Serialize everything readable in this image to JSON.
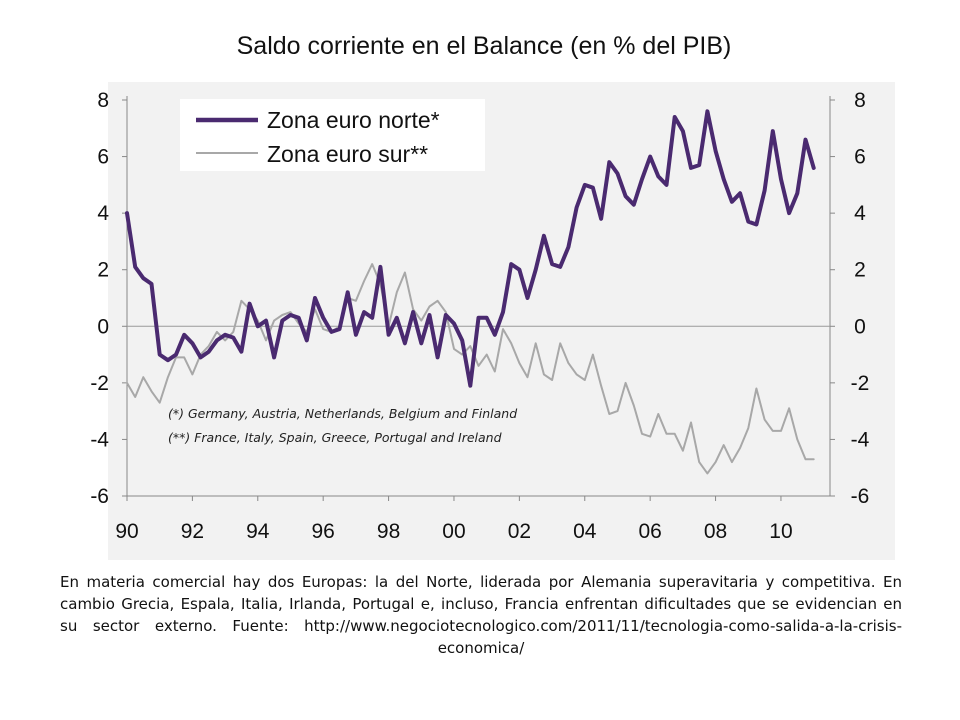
{
  "chart_data": {
    "type": "line",
    "title": "Saldo corriente en el Balance (en % del PIB)",
    "xlim": [
      1990,
      2011.5
    ],
    "ylim": [
      -6,
      8
    ],
    "x_tick_labels": [
      "90",
      "92",
      "94",
      "96",
      "98",
      "00",
      "02",
      "04",
      "06",
      "08",
      "10"
    ],
    "x_ticks": [
      1990,
      1992,
      1994,
      1996,
      1998,
      2000,
      2002,
      2004,
      2006,
      2008,
      2010
    ],
    "y_ticks": [
      8,
      6,
      4,
      2,
      0,
      -2,
      -4,
      -6
    ],
    "y_tick_labels": [
      "8",
      "6",
      "4",
      "2",
      "0",
      "-2",
      "-4",
      "-6"
    ],
    "legend_position": "top-left",
    "colors": {
      "north": "#4a2a70",
      "south": "#a8a8a8",
      "zero_line": "#999999",
      "axis": "#888888"
    },
    "series": [
      {
        "name": "Zona euro norte*",
        "key": "north",
        "x": [
          1990.0,
          1990.25,
          1990.5,
          1990.75,
          1991.0,
          1991.25,
          1991.5,
          1991.75,
          1992.0,
          1992.25,
          1992.5,
          1992.75,
          1993.0,
          1993.25,
          1993.5,
          1993.75,
          1994.0,
          1994.25,
          1994.5,
          1994.75,
          1995.0,
          1995.25,
          1995.5,
          1995.75,
          1996.0,
          1996.25,
          1996.5,
          1996.75,
          1997.0,
          1997.25,
          1997.5,
          1997.75,
          1998.0,
          1998.25,
          1998.5,
          1998.75,
          1999.0,
          1999.25,
          1999.5,
          1999.75,
          2000.0,
          2000.25,
          2000.5,
          2000.75,
          2001.0,
          2001.25,
          2001.5,
          2001.75,
          2002.0,
          2002.25,
          2002.5,
          2002.75,
          2003.0,
          2003.25,
          2003.5,
          2003.75,
          2004.0,
          2004.25,
          2004.5,
          2004.75,
          2005.0,
          2005.25,
          2005.5,
          2005.75,
          2006.0,
          2006.25,
          2006.5,
          2006.75,
          2007.0,
          2007.25,
          2007.5,
          2007.75,
          2008.0,
          2008.25,
          2008.5,
          2008.75,
          2009.0,
          2009.25,
          2009.5,
          2009.75,
          2010.0,
          2010.25,
          2010.5,
          2010.75,
          2011.0
        ],
        "y": [
          4.0,
          2.1,
          1.7,
          1.5,
          -1.0,
          -1.2,
          -1.0,
          -0.3,
          -0.6,
          -1.1,
          -0.9,
          -0.5,
          -0.3,
          -0.4,
          -0.9,
          0.8,
          0.0,
          0.2,
          -1.1,
          0.2,
          0.4,
          0.3,
          -0.5,
          1.0,
          0.3,
          -0.2,
          -0.1,
          1.2,
          -0.3,
          0.5,
          0.3,
          2.1,
          -0.3,
          0.3,
          -0.6,
          0.5,
          -0.6,
          0.4,
          -1.1,
          0.4,
          0.1,
          -0.5,
          -2.1,
          0.3,
          0.3,
          -0.3,
          0.5,
          2.2,
          2.0,
          1.0,
          2.0,
          3.2,
          2.2,
          2.1,
          2.8,
          4.2,
          5.0,
          4.9,
          3.8,
          5.8,
          5.4,
          4.6,
          4.3,
          5.2,
          6.0,
          5.3,
          5.0,
          7.4,
          6.9,
          5.6,
          5.7,
          7.6,
          6.2,
          5.2,
          4.4,
          4.7,
          3.7,
          3.6,
          4.8,
          6.9,
          5.2,
          4.0,
          4.7,
          6.6,
          5.6
        ]
      },
      {
        "name": "Zona euro sur**",
        "key": "south",
        "x": [
          1990.0,
          1990.25,
          1990.5,
          1990.75,
          1991.0,
          1991.25,
          1991.5,
          1991.75,
          1992.0,
          1992.25,
          1992.5,
          1992.75,
          1993.0,
          1993.25,
          1993.5,
          1993.75,
          1994.0,
          1994.25,
          1994.5,
          1994.75,
          1995.0,
          1995.25,
          1995.5,
          1995.75,
          1996.0,
          1996.25,
          1996.5,
          1996.75,
          1997.0,
          1997.25,
          1997.5,
          1997.75,
          1998.0,
          1998.25,
          1998.5,
          1998.75,
          1999.0,
          1999.25,
          1999.5,
          1999.75,
          2000.0,
          2000.25,
          2000.5,
          2000.75,
          2001.0,
          2001.25,
          2001.5,
          2001.75,
          2002.0,
          2002.25,
          2002.5,
          2002.75,
          2003.0,
          2003.25,
          2003.5,
          2003.75,
          2004.0,
          2004.25,
          2004.5,
          2004.75,
          2005.0,
          2005.25,
          2005.5,
          2005.75,
          2006.0,
          2006.25,
          2006.5,
          2006.75,
          2007.0,
          2007.25,
          2007.5,
          2007.75,
          2008.0,
          2008.25,
          2008.5,
          2008.75,
          2009.0,
          2009.25,
          2009.5,
          2009.75,
          2010.0,
          2010.25,
          2010.5,
          2010.75,
          2011.0
        ],
        "y": [
          -2.0,
          -2.5,
          -1.8,
          -2.3,
          -2.7,
          -1.8,
          -1.1,
          -1.1,
          -1.7,
          -1.0,
          -0.7,
          -0.2,
          -0.5,
          -0.2,
          0.9,
          0.6,
          0.2,
          -0.5,
          0.2,
          0.4,
          0.5,
          0.1,
          -0.2,
          0.6,
          -0.1,
          -0.2,
          0.0,
          1.0,
          0.9,
          1.6,
          2.2,
          1.5,
          0.0,
          1.2,
          1.9,
          0.6,
          0.2,
          0.7,
          0.9,
          0.5,
          -0.8,
          -1.0,
          -0.7,
          -1.4,
          -1.0,
          -1.6,
          -0.1,
          -0.6,
          -1.3,
          -1.8,
          -0.6,
          -1.7,
          -1.9,
          -0.6,
          -1.3,
          -1.7,
          -1.9,
          -1.0,
          -2.1,
          -3.1,
          -3.0,
          -2.0,
          -2.8,
          -3.8,
          -3.9,
          -3.1,
          -3.8,
          -3.8,
          -4.4,
          -3.4,
          -4.8,
          -5.2,
          -4.8,
          -4.2,
          -4.8,
          -4.3,
          -3.6,
          -2.2,
          -3.3,
          -3.7,
          -3.7,
          -2.9,
          -4.0,
          -4.7,
          -4.7
        ]
      }
    ],
    "annotations": [
      "(*) Germany, Austria, Netherlands, Belgium and Finland",
      "(**) France, Italy, Spain, Greece, Portugal and Ireland"
    ]
  },
  "caption": {
    "text": "En materia comercial hay dos Europas: la del Norte, liderada por Alemania superavitaria y competitiva. En cambio Grecia, Espala, Italia, Irlanda, Portugal e, incluso, Francia enfrentan dificultades que se evidencian en su sector externo. Fuente: http://www.negociotecnologico.com/2011/11/tecnologia-como-salida-a-la-crisis-economica/"
  }
}
